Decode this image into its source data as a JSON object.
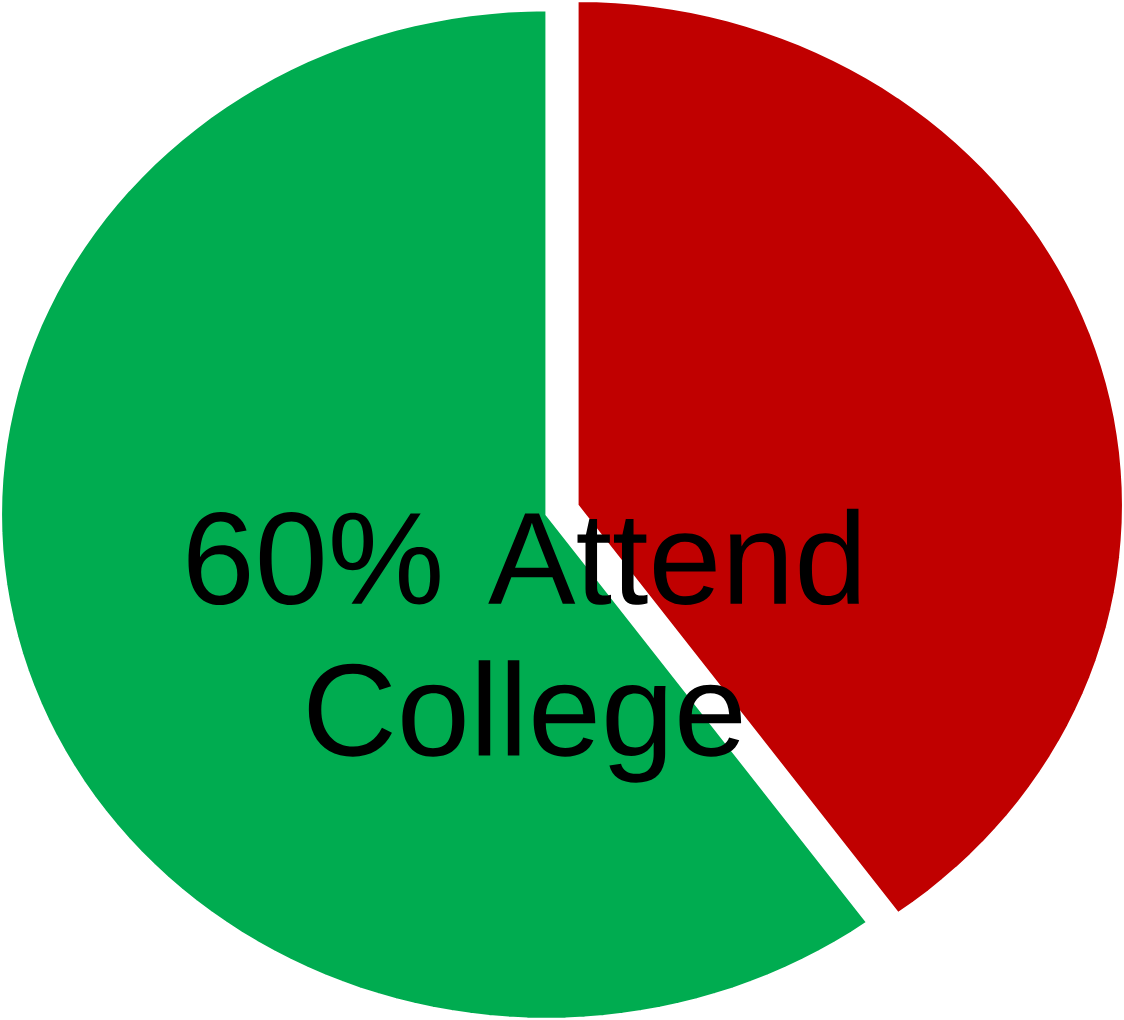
{
  "chart_data": {
    "type": "pie",
    "categories": [
      null,
      null
    ],
    "values": [
      40,
      60
    ],
    "colors": [
      "#c00000",
      "#00ac50"
    ],
    "annotations": [
      "60% Attend College"
    ]
  }
}
